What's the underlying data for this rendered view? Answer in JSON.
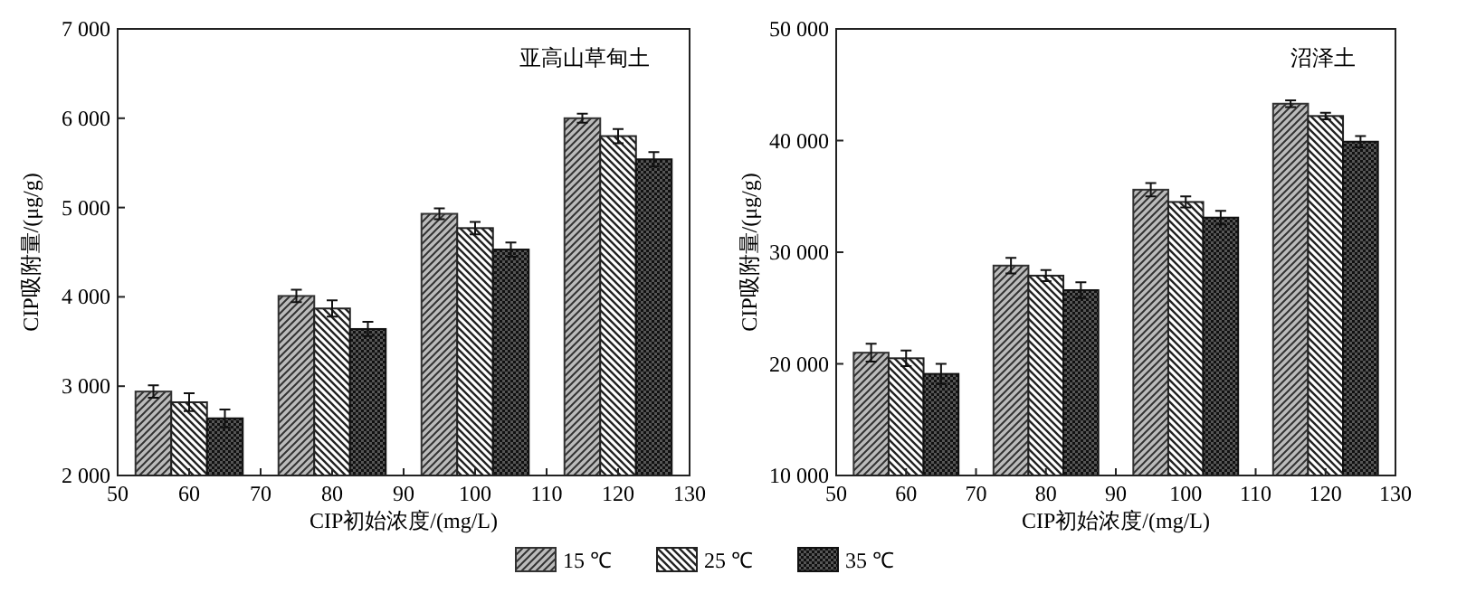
{
  "chart_data": [
    {
      "type": "bar",
      "xlabel": "CIP初始浓度/(mg/L)",
      "ylabel": "CIP吸附量/(μg/g)",
      "annotations": [
        "亚高山草甸土"
      ],
      "xlim": [
        50,
        130
      ],
      "xticks": [
        50,
        60,
        70,
        80,
        90,
        100,
        110,
        120,
        130
      ],
      "ylim": [
        2000,
        7000
      ],
      "yticks": [
        {
          "value": 2000,
          "label": "2 000"
        },
        {
          "value": 3000,
          "label": "3 000"
        },
        {
          "value": 4000,
          "label": "4 000"
        },
        {
          "value": 5000,
          "label": "5 000"
        },
        {
          "value": 6000,
          "label": "6 000"
        },
        {
          "value": 7000,
          "label": "7 000"
        }
      ],
      "legend": "bottom",
      "series": [
        {
          "name": "15 ℃",
          "color": "#333333",
          "x": [
            55,
            75,
            95,
            115
          ],
          "values": [
            2940,
            4010,
            4930,
            6000
          ],
          "errors": [
            70,
            70,
            60,
            50
          ]
        },
        {
          "name": "25 ℃",
          "color": "#222222",
          "x": [
            60,
            80,
            100,
            120
          ],
          "values": [
            2820,
            3870,
            4770,
            5800
          ],
          "errors": [
            100,
            90,
            70,
            80
          ]
        },
        {
          "name": "35 ℃",
          "color": "#111111",
          "x": [
            65,
            85,
            105,
            125
          ],
          "values": [
            2640,
            3640,
            4530,
            5540
          ],
          "errors": [
            100,
            80,
            80,
            80
          ]
        }
      ]
    },
    {
      "type": "bar",
      "xlabel": "CIP初始浓度/(mg/L)",
      "ylabel": "CIP吸附量/(μg/g)",
      "annotations": [
        "沼泽土"
      ],
      "xlim": [
        50,
        130
      ],
      "xticks": [
        50,
        60,
        70,
        80,
        90,
        100,
        110,
        120,
        130
      ],
      "ylim": [
        10000,
        50000
      ],
      "yticks": [
        {
          "value": 10000,
          "label": "10 000"
        },
        {
          "value": 20000,
          "label": "20 000"
        },
        {
          "value": 30000,
          "label": "30 000"
        },
        {
          "value": 40000,
          "label": "40 000"
        },
        {
          "value": 50000,
          "label": "50 000"
        }
      ],
      "series": [
        {
          "color": "#333333",
          "x": [
            55,
            75,
            95,
            115
          ],
          "values": [
            21000,
            28800,
            35600,
            43300
          ],
          "errors": [
            800,
            700,
            600,
            300
          ]
        },
        {
          "color": "#222222",
          "x": [
            60,
            80,
            100,
            120
          ],
          "values": [
            20500,
            27900,
            34500,
            42200
          ],
          "errors": [
            700,
            500,
            500,
            300
          ]
        },
        {
          "color": "#111111",
          "x": [
            65,
            85,
            105,
            125
          ],
          "values": [
            19100,
            26600,
            33100,
            39900
          ],
          "errors": [
            900,
            700,
            600,
            500
          ]
        }
      ]
    }
  ]
}
